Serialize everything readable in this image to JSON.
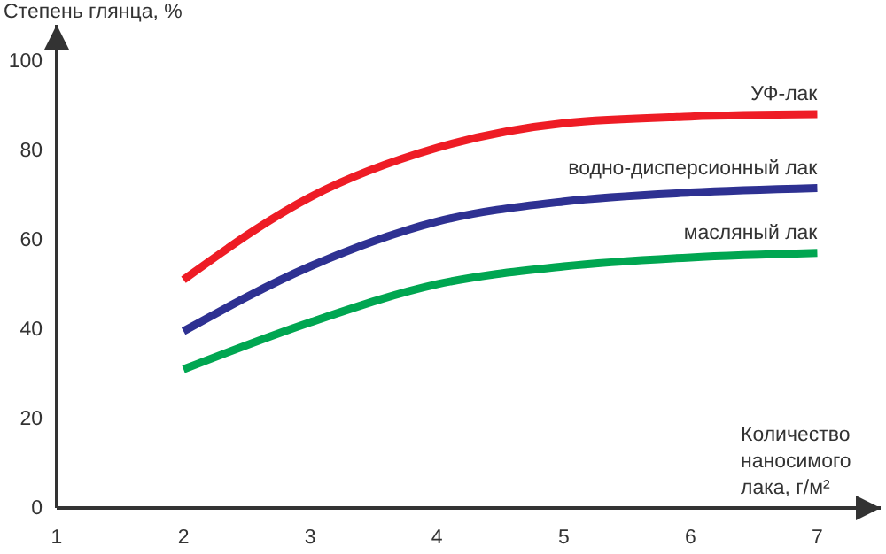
{
  "chart_data": {
    "type": "line",
    "ylabel": "Степень глянца, %",
    "xlabel": "Количество наносимого лака, г/м²",
    "x": [
      2,
      3,
      4,
      5,
      6,
      7
    ],
    "series": [
      {
        "name": "УФ-лак",
        "color": "#ee1c25",
        "values": [
          51,
          69.5,
          80.5,
          86,
          87.5,
          88
        ]
      },
      {
        "name": "водно-дисперсионный лак",
        "color": "#2e3192",
        "values": [
          39.5,
          54,
          64,
          68.5,
          70.5,
          71.5
        ]
      },
      {
        "name": "масляный лак",
        "color": "#00a651",
        "values": [
          31,
          41.5,
          50,
          54,
          56,
          57
        ]
      }
    ],
    "xlim": [
      1,
      7.5
    ],
    "ylim": [
      0,
      108
    ],
    "xticks": [
      1,
      2,
      3,
      4,
      5,
      6,
      7
    ],
    "yticks": [
      0,
      20,
      40,
      60,
      80,
      100
    ],
    "grid": false,
    "legend": false,
    "marker": "none",
    "line_style": "solid"
  }
}
